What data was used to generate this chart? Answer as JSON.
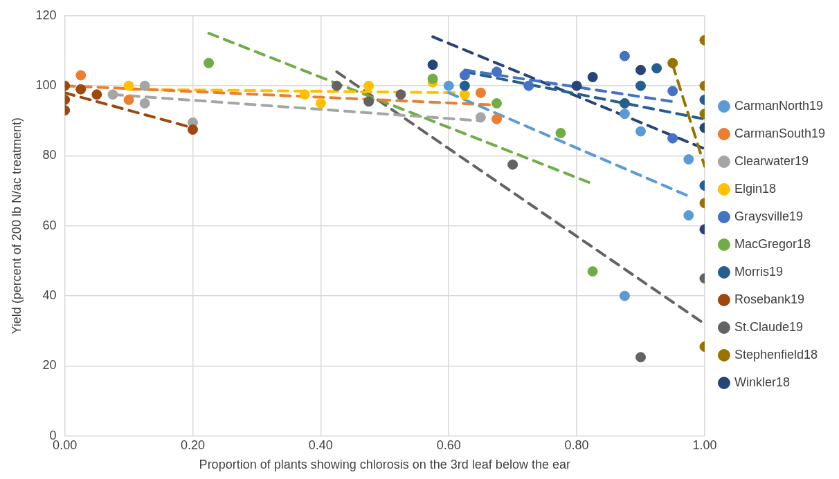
{
  "chart_data": {
    "type": "scatter",
    "xlabel": "Proportion of plants showing chlorosis on the 3rd leaf below the ear",
    "ylabel": "Yield (percent of 200 lb N/ac treatment)",
    "xlim": [
      0,
      1
    ],
    "xticks": [
      {
        "value": 0,
        "label": "0.00"
      },
      {
        "value": 0.2,
        "label": "0.20"
      },
      {
        "value": 0.4,
        "label": "0.40"
      },
      {
        "value": 0.6,
        "label": "0.60"
      },
      {
        "value": 0.8,
        "label": "0.80"
      },
      {
        "value": 1,
        "label": "1.00"
      }
    ],
    "ylim": [
      0,
      120
    ],
    "yticks": [
      0,
      20,
      40,
      60,
      80,
      100,
      120
    ],
    "grid": true,
    "legend": "right",
    "marker": "circle",
    "series": [
      {
        "name": "CarmanNorth19",
        "color": "#5b9bd5",
        "x": [
          0.6,
          0.875,
          0.9,
          0.975,
          0.975,
          0.875
        ],
        "values": [
          100,
          92,
          87,
          79,
          63,
          40
        ]
      },
      {
        "name": "CarmanSouth19",
        "color": "#ed7d31",
        "x": [
          0.025,
          0.1,
          0.65,
          0.675
        ],
        "values": [
          103,
          96,
          98,
          90.5
        ]
      },
      {
        "name": "Clearwater19",
        "color": "#a5a5a5",
        "x": [
          0.125,
          0.075,
          0.125,
          0.2,
          0.65
        ],
        "values": [
          100,
          97.5,
          95,
          89.5,
          91
        ]
      },
      {
        "name": "Elgin18",
        "color": "#ffc000",
        "x": [
          0.1,
          0.375,
          0.4,
          0.475,
          0.575,
          0.625
        ],
        "values": [
          100,
          97.5,
          95,
          100,
          101,
          97.5
        ]
      },
      {
        "name": "Graysville19",
        "color": "#4472c4",
        "x": [
          0.675,
          0.625,
          0.725,
          0.875,
          0.95,
          0.95
        ],
        "values": [
          104,
          103,
          100,
          108.5,
          98.5,
          85
        ]
      },
      {
        "name": "MacGregor18",
        "color": "#70ad47",
        "x": [
          0.225,
          0.575,
          0.675,
          0.775,
          0.825
        ],
        "values": [
          106.5,
          102,
          95,
          86.5,
          47
        ]
      },
      {
        "name": "Morris19",
        "color": "#255e91",
        "x": [
          0.625,
          0.925,
          0.9,
          0.875,
          1,
          1
        ],
        "values": [
          100,
          105,
          100,
          95,
          96,
          71.5
        ]
      },
      {
        "name": "Rosebank19",
        "color": "#9e480e",
        "x": [
          0,
          0,
          0,
          0.025,
          0.05,
          0.2
        ],
        "values": [
          100,
          96,
          93,
          99,
          97.5,
          87.5
        ]
      },
      {
        "name": "St.Claude19",
        "color": "#636363",
        "x": [
          0.425,
          0.475,
          0.525,
          0.7,
          0.9,
          1
        ],
        "values": [
          100,
          95.5,
          97.5,
          77.5,
          22.5,
          45
        ]
      },
      {
        "name": "Stephenfield18",
        "color": "#997300",
        "x": [
          1,
          1,
          1,
          0.95,
          1,
          1
        ],
        "values": [
          113,
          100,
          92,
          106.5,
          66.5,
          25.5
        ]
      },
      {
        "name": "Winkler18",
        "color": "#264478",
        "x": [
          0.575,
          0.825,
          0.9,
          0.8,
          1,
          1
        ],
        "values": [
          106,
          102.5,
          104.5,
          100,
          88,
          59
        ]
      },
      {
        "type": "line",
        "color": "#5b9bd5",
        "x": [
          0.6,
          0.975
        ],
        "values": [
          98,
          68.5
        ],
        "line_style": "dashed",
        "marker": "none"
      },
      {
        "type": "line",
        "color": "#ed7d31",
        "x": [
          0,
          0.675
        ],
        "values": [
          100,
          94.5
        ],
        "line_style": "dashed",
        "marker": "none"
      },
      {
        "type": "line",
        "color": "#a5a5a5",
        "x": [
          0.075,
          0.65
        ],
        "values": [
          97.5,
          90
        ],
        "line_style": "dashed",
        "marker": "none"
      },
      {
        "type": "line",
        "color": "#ffc000",
        "x": [
          0.1,
          0.625
        ],
        "values": [
          99,
          98
        ],
        "line_style": "dashed",
        "marker": "none"
      },
      {
        "type": "line",
        "color": "#4472c4",
        "x": [
          0.625,
          0.95
        ],
        "values": [
          104.5,
          95.5
        ],
        "line_style": "dashed",
        "marker": "none"
      },
      {
        "type": "line",
        "color": "#70ad47",
        "x": [
          0.225,
          0.825
        ],
        "values": [
          115,
          72
        ],
        "line_style": "dashed",
        "marker": "none"
      },
      {
        "type": "line",
        "color": "#255e91",
        "x": [
          0.625,
          1
        ],
        "values": [
          104,
          90.5
        ],
        "line_style": "dashed",
        "marker": "none"
      },
      {
        "type": "line",
        "color": "#9e480e",
        "x": [
          0,
          0.2
        ],
        "values": [
          98,
          88
        ],
        "line_style": "dashed",
        "marker": "none"
      },
      {
        "type": "line",
        "color": "#636363",
        "x": [
          0.425,
          1
        ],
        "values": [
          104,
          32
        ],
        "line_style": "dashed",
        "marker": "none"
      },
      {
        "type": "line",
        "color": "#997300",
        "x": [
          0.95,
          1
        ],
        "values": [
          106,
          77
        ],
        "line_style": "dashed",
        "marker": "none"
      },
      {
        "type": "line",
        "color": "#264478",
        "x": [
          0.575,
          1
        ],
        "values": [
          114,
          82
        ],
        "line_style": "dashed",
        "marker": "none"
      }
    ]
  }
}
